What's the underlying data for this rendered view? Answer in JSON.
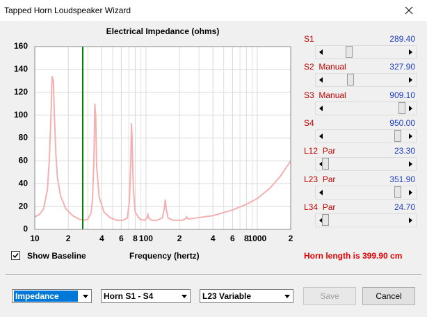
{
  "window": {
    "title": "Tapped Horn Loudspeaker Wizard"
  },
  "chart_data": {
    "type": "line",
    "title": "Electrical Impedance (ohms)",
    "x_label": "Frequency (hertz)",
    "x": [
      10,
      11,
      12,
      13,
      13.5,
      14,
      14.3,
      14.7,
      15,
      15.5,
      16,
      17,
      19,
      22,
      25,
      28,
      30,
      32,
      33,
      34,
      34.7,
      35.3,
      36,
      38,
      42,
      48,
      55,
      62,
      68,
      71,
      73,
      74,
      75,
      77,
      80,
      88,
      97,
      102,
      104,
      106,
      112,
      125,
      140,
      146,
      149,
      152,
      158,
      175,
      210,
      225,
      232,
      240,
      280,
      400,
      600,
      800,
      1000,
      1300,
      1600,
      2000
    ],
    "values": [
      11,
      13,
      18,
      35,
      60,
      100,
      134,
      130,
      100,
      65,
      45,
      30,
      18,
      12,
      9,
      8,
      9,
      14,
      25,
      60,
      110,
      100,
      55,
      28,
      15,
      10,
      8,
      8,
      10,
      25,
      60,
      93,
      80,
      35,
      15,
      9,
      8,
      10,
      13,
      10,
      8,
      8,
      10,
      18,
      26,
      18,
      10,
      8,
      8,
      9,
      11,
      9,
      10,
      12,
      17,
      22,
      27,
      36,
      46,
      60
    ],
    "color": "#f4b0b0",
    "log_x": true,
    "xlim": [
      10,
      2000
    ],
    "ylim": [
      0,
      160
    ],
    "xticks": [
      10,
      {
        "value": 20,
        "label": "2"
      },
      {
        "value": 40,
        "label": "4"
      },
      {
        "value": 60,
        "label": "6"
      },
      {
        "value": 80,
        "label": "8"
      },
      100,
      {
        "value": 200,
        "label": "2"
      },
      {
        "value": 400,
        "label": "4"
      },
      {
        "value": 600,
        "label": "6"
      },
      {
        "value": 800,
        "label": "8"
      },
      1000,
      {
        "value": 2000,
        "label": "2"
      }
    ],
    "x_minor_grid": [
      30,
      50,
      70,
      90,
      300,
      500,
      700,
      900
    ],
    "yticks": [
      0,
      20,
      40,
      60,
      80,
      100,
      120,
      140,
      160
    ],
    "grid": true,
    "markers": [
      {
        "x": 27,
        "color": "#008000"
      }
    ]
  },
  "sliders": [
    {
      "label": "S1",
      "value": "289.40"
    },
    {
      "label": "S2  Manual",
      "value": "327.90"
    },
    {
      "label": "S3  Manual",
      "value": "909.10"
    },
    {
      "label": "S4",
      "value": "950.00"
    },
    {
      "label": "L12  Par",
      "value": "23.30"
    },
    {
      "label": "L23  Par",
      "value": "351.90"
    },
    {
      "label": "L34  Par",
      "value": "24.70"
    }
  ],
  "checkbox": {
    "label": "Show Baseline"
  },
  "status": "Horn length is 399.90 cm",
  "dropdowns": [
    "Impedance",
    "Horn S1 - S4",
    "L23 Variable"
  ],
  "buttons": {
    "save": "Save",
    "cancel": "Cancel"
  }
}
